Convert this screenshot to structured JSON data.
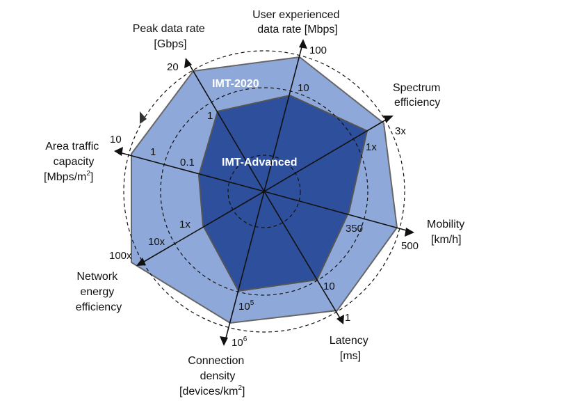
{
  "chart_data": {
    "type": "radar",
    "axes": [
      {
        "id": "user-rate",
        "lines": [
          "User experienced",
          "data rate [Mbps]"
        ],
        "ticks": {
          "advanced": "10",
          "imt2020": "100"
        }
      },
      {
        "id": "spectrum",
        "lines": [
          "Spectrum",
          "efficiency"
        ],
        "ticks": {
          "advanced": "1x",
          "imt2020": "3x"
        }
      },
      {
        "id": "mobility",
        "lines": [
          "Mobility",
          "[km/h]"
        ],
        "ticks": {
          "advanced": "350",
          "imt2020": "500"
        }
      },
      {
        "id": "latency",
        "lines": [
          "Latency",
          "[ms]"
        ],
        "ticks": {
          "advanced": "10",
          "imt2020": "1"
        }
      },
      {
        "id": "connection-density",
        "lines": [
          "Connection",
          "density",
          "[devices/km",
          "2",
          "]"
        ],
        "ticks": {
          "advanced": "10",
          "advanced_sup": "5",
          "imt2020": "10",
          "imt2020_sup": "6"
        }
      },
      {
        "id": "energy",
        "lines": [
          "Network",
          "energy",
          "efficiency"
        ],
        "ticks": {
          "advanced": "1x",
          "imt2020": "100x",
          "extra": "10x"
        }
      },
      {
        "id": "area-traffic",
        "lines": [
          "Area traffic",
          "capacity",
          "[Mbps/m",
          "2",
          "]"
        ],
        "ticks": {
          "advanced": "0.1",
          "imt2020": "10",
          "extra": "1"
        }
      },
      {
        "id": "peak-rate",
        "lines": [
          "Peak data rate",
          "[Gbps]"
        ],
        "ticks": {
          "advanced": "1",
          "imt2020": "20"
        }
      }
    ],
    "series": [
      {
        "name": "IMT-2020",
        "color": "#8ea8d9"
      },
      {
        "name": "IMT-Advanced",
        "color": "#2e4f9c"
      }
    ]
  }
}
